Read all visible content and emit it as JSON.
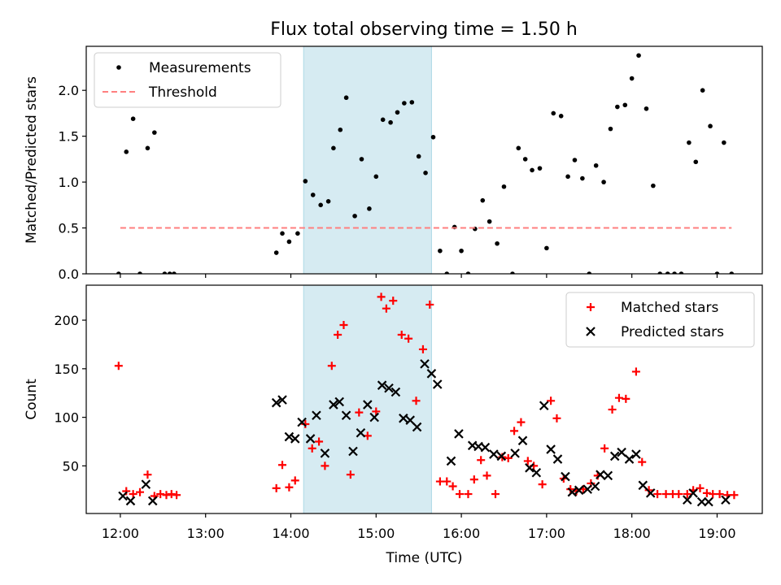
{
  "title": "Flux total observing time = 1.50 h",
  "chart_data": [
    {
      "type": "scatter",
      "ylabel": "Matched/Predicted stars",
      "xlim": [
        11.6,
        19.53
      ],
      "ylim": [
        0,
        2.48
      ],
      "yticks": [
        0.0,
        0.5,
        1.0,
        1.5,
        2.0
      ],
      "ytick_labels": [
        "0.0",
        "0.5",
        "1.0",
        "1.5",
        "2.0"
      ],
      "xticks": [
        12,
        13,
        14,
        15,
        16,
        17,
        18,
        19
      ],
      "x_tick_labels_shown": false,
      "shaded_span": {
        "x": [
          14.15,
          15.65
        ],
        "color": "#add8e6"
      },
      "legend_position": "upper left",
      "series": [
        {
          "name": "Measurements",
          "marker": "dot",
          "color": "#000000",
          "points": [
            [
              11.98,
              0
            ],
            [
              12.07,
              1.33
            ],
            [
              12.15,
              1.69
            ],
            [
              12.23,
              0
            ],
            [
              12.32,
              1.37
            ],
            [
              12.4,
              1.54
            ],
            [
              12.52,
              0
            ],
            [
              12.58,
              0
            ],
            [
              12.63,
              0
            ],
            [
              13.83,
              0.23
            ],
            [
              13.9,
              0.44
            ],
            [
              13.98,
              0.35
            ],
            [
              14.08,
              0.44
            ],
            [
              14.17,
              1.01
            ],
            [
              14.26,
              0.86
            ],
            [
              14.35,
              0.75
            ],
            [
              14.44,
              0.79
            ],
            [
              14.5,
              1.37
            ],
            [
              14.58,
              1.57
            ],
            [
              14.65,
              1.92
            ],
            [
              14.75,
              0.63
            ],
            [
              14.83,
              1.25
            ],
            [
              14.92,
              0.71
            ],
            [
              15.0,
              1.06
            ],
            [
              15.08,
              1.68
            ],
            [
              15.17,
              1.65
            ],
            [
              15.25,
              1.76
            ],
            [
              15.33,
              1.86
            ],
            [
              15.42,
              1.87
            ],
            [
              15.5,
              1.28
            ],
            [
              15.58,
              1.1
            ],
            [
              15.67,
              1.49
            ],
            [
              15.75,
              0.25
            ],
            [
              15.83,
              0
            ],
            [
              15.92,
              0.51
            ],
            [
              16.0,
              0.25
            ],
            [
              16.08,
              0
            ],
            [
              16.16,
              0.49
            ],
            [
              16.25,
              0.8
            ],
            [
              16.33,
              0.57
            ],
            [
              16.42,
              0.33
            ],
            [
              16.5,
              0.95
            ],
            [
              16.6,
              0
            ],
            [
              16.67,
              1.37
            ],
            [
              16.75,
              1.25
            ],
            [
              16.83,
              1.13
            ],
            [
              16.92,
              1.15
            ],
            [
              17.0,
              0.28
            ],
            [
              17.08,
              1.75
            ],
            [
              17.17,
              1.72
            ],
            [
              17.25,
              1.06
            ],
            [
              17.33,
              1.24
            ],
            [
              17.42,
              1.04
            ],
            [
              17.5,
              0
            ],
            [
              17.58,
              1.18
            ],
            [
              17.67,
              1.0
            ],
            [
              17.75,
              1.58
            ],
            [
              17.83,
              1.82
            ],
            [
              17.92,
              1.84
            ],
            [
              18.0,
              2.13
            ],
            [
              18.08,
              2.38
            ],
            [
              18.17,
              1.8
            ],
            [
              18.25,
              0.96
            ],
            [
              18.33,
              0
            ],
            [
              18.42,
              0
            ],
            [
              18.5,
              0
            ],
            [
              18.58,
              0
            ],
            [
              18.67,
              1.43
            ],
            [
              18.75,
              1.22
            ],
            [
              18.83,
              2.0
            ],
            [
              18.92,
              1.61
            ],
            [
              19.0,
              0
            ],
            [
              19.08,
              1.43
            ],
            [
              19.17,
              0
            ]
          ]
        },
        {
          "name": "Threshold",
          "line_style": "dashed",
          "color": "#ff7f7f",
          "points": [
            [
              12.0,
              0.5
            ],
            [
              19.17,
              0.5
            ]
          ]
        }
      ]
    },
    {
      "type": "scatter",
      "xlabel": "Time (UTC)",
      "ylabel": "Count",
      "xlim": [
        11.6,
        19.53
      ],
      "ylim": [
        1,
        236
      ],
      "xticks": [
        12,
        13,
        14,
        15,
        16,
        17,
        18,
        19
      ],
      "x_tick_labels": [
        "12:00",
        "13:00",
        "14:00",
        "15:00",
        "16:00",
        "17:00",
        "18:00",
        "19:00"
      ],
      "yticks": [
        50,
        100,
        150,
        200
      ],
      "ytick_labels": [
        "50",
        "100",
        "150",
        "200"
      ],
      "shaded_span": {
        "x": [
          14.15,
          15.65
        ],
        "color": "#add8e6"
      },
      "legend_position": "upper right",
      "series": [
        {
          "name": "Matched stars",
          "marker": "plus",
          "color": "#ff0000",
          "points": [
            [
              11.98,
              153
            ],
            [
              12.07,
              24
            ],
            [
              12.15,
              21
            ],
            [
              12.23,
              23
            ],
            [
              12.32,
              41
            ],
            [
              12.4,
              19
            ],
            [
              12.47,
              21
            ],
            [
              12.54,
              20
            ],
            [
              12.6,
              21
            ],
            [
              12.66,
              20
            ],
            [
              13.83,
              27
            ],
            [
              13.9,
              51
            ],
            [
              13.98,
              28
            ],
            [
              14.05,
              35
            ],
            [
              14.17,
              93
            ],
            [
              14.25,
              68
            ],
            [
              14.33,
              75
            ],
            [
              14.4,
              50
            ],
            [
              14.48,
              153
            ],
            [
              14.55,
              185
            ],
            [
              14.62,
              195
            ],
            [
              14.7,
              41
            ],
            [
              14.8,
              105
            ],
            [
              14.9,
              81
            ],
            [
              15.0,
              106
            ],
            [
              15.06,
              224
            ],
            [
              15.12,
              212
            ],
            [
              15.2,
              220
            ],
            [
              15.3,
              185
            ],
            [
              15.38,
              181
            ],
            [
              15.47,
              117
            ],
            [
              15.55,
              170
            ],
            [
              15.63,
              216
            ],
            [
              15.75,
              34
            ],
            [
              15.83,
              34
            ],
            [
              15.9,
              29
            ],
            [
              15.98,
              21
            ],
            [
              16.08,
              21
            ],
            [
              16.15,
              36
            ],
            [
              16.23,
              56
            ],
            [
              16.3,
              40
            ],
            [
              16.4,
              21
            ],
            [
              16.48,
              59
            ],
            [
              16.55,
              58
            ],
            [
              16.62,
              86
            ],
            [
              16.7,
              95
            ],
            [
              16.78,
              55
            ],
            [
              16.85,
              50
            ],
            [
              16.95,
              31
            ],
            [
              17.05,
              117
            ],
            [
              17.12,
              99
            ],
            [
              17.2,
              37
            ],
            [
              17.28,
              26
            ],
            [
              17.35,
              24
            ],
            [
              17.43,
              26
            ],
            [
              17.52,
              32
            ],
            [
              17.6,
              40
            ],
            [
              17.68,
              68
            ],
            [
              17.77,
              108
            ],
            [
              17.85,
              120
            ],
            [
              17.93,
              119
            ],
            [
              18.05,
              147
            ],
            [
              18.12,
              54
            ],
            [
              18.2,
              25
            ],
            [
              18.3,
              21
            ],
            [
              18.4,
              21
            ],
            [
              18.48,
              21
            ],
            [
              18.55,
              21
            ],
            [
              18.65,
              21
            ],
            [
              18.72,
              25
            ],
            [
              18.8,
              27
            ],
            [
              18.88,
              22
            ],
            [
              18.95,
              21
            ],
            [
              19.03,
              21
            ],
            [
              19.12,
              20
            ],
            [
              19.2,
              20
            ]
          ]
        },
        {
          "name": "Predicted stars",
          "marker": "x",
          "color": "#000000",
          "points": [
            [
              12.03,
              19
            ],
            [
              12.12,
              14
            ],
            [
              12.3,
              31
            ],
            [
              12.38,
              14
            ],
            [
              13.83,
              115
            ],
            [
              13.9,
              118
            ],
            [
              13.98,
              80
            ],
            [
              14.05,
              78
            ],
            [
              14.13,
              95
            ],
            [
              14.23,
              78
            ],
            [
              14.3,
              102
            ],
            [
              14.4,
              63
            ],
            [
              14.5,
              113
            ],
            [
              14.57,
              116
            ],
            [
              14.65,
              102
            ],
            [
              14.73,
              65
            ],
            [
              14.82,
              84
            ],
            [
              14.9,
              113
            ],
            [
              14.98,
              100
            ],
            [
              15.07,
              133
            ],
            [
              15.15,
              130
            ],
            [
              15.23,
              126
            ],
            [
              15.32,
              99
            ],
            [
              15.4,
              97
            ],
            [
              15.48,
              90
            ],
            [
              15.57,
              155
            ],
            [
              15.65,
              145
            ],
            [
              15.72,
              134
            ],
            [
              15.88,
              55
            ],
            [
              15.97,
              83
            ],
            [
              16.13,
              71
            ],
            [
              16.2,
              70
            ],
            [
              16.28,
              69
            ],
            [
              16.38,
              62
            ],
            [
              16.47,
              60
            ],
            [
              16.63,
              63
            ],
            [
              16.72,
              76
            ],
            [
              16.8,
              48
            ],
            [
              16.88,
              43
            ],
            [
              16.97,
              112
            ],
            [
              17.05,
              67
            ],
            [
              17.13,
              57
            ],
            [
              17.22,
              39
            ],
            [
              17.3,
              23
            ],
            [
              17.38,
              25
            ],
            [
              17.48,
              26
            ],
            [
              17.57,
              29
            ],
            [
              17.63,
              41
            ],
            [
              17.72,
              40
            ],
            [
              17.8,
              60
            ],
            [
              17.88,
              64
            ],
            [
              17.97,
              57
            ],
            [
              18.05,
              62
            ],
            [
              18.13,
              30
            ],
            [
              18.22,
              22
            ],
            [
              18.65,
              15
            ],
            [
              18.72,
              22
            ],
            [
              18.82,
              13
            ],
            [
              18.9,
              13
            ],
            [
              19.1,
              15
            ]
          ]
        }
      ]
    }
  ]
}
